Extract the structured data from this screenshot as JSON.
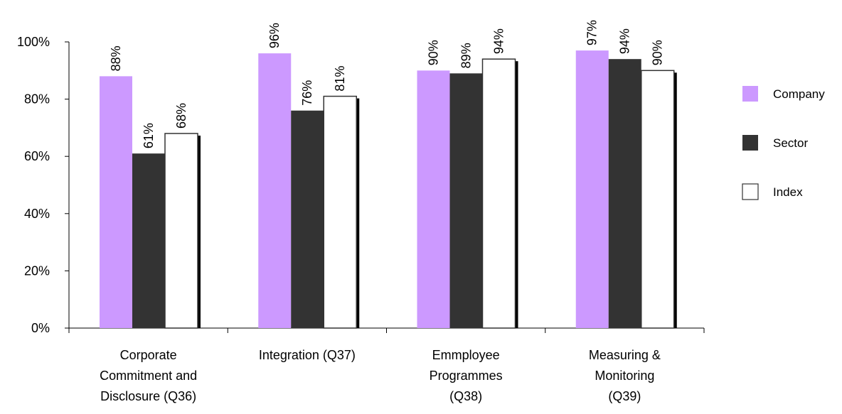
{
  "chart_data": {
    "type": "bar",
    "categories": [
      [
        "Corporate",
        "Commitment and",
        "Disclosure (Q36)"
      ],
      [
        "Integration (Q37)"
      ],
      [
        "Emmployee",
        "Programmes",
        "(Q38)"
      ],
      [
        "Measuring &",
        "Monitoring",
        "(Q39)"
      ]
    ],
    "series": [
      {
        "name": "Company",
        "values": [
          88,
          96,
          90,
          97
        ],
        "labels": [
          "88%",
          "96%",
          "90%",
          "97%"
        ],
        "color": "#cc99ff"
      },
      {
        "name": "Sector",
        "values": [
          61,
          76,
          89,
          94
        ],
        "labels": [
          "61%",
          "76%",
          "89%",
          "94%"
        ],
        "color": "#333333"
      },
      {
        "name": "Index",
        "values": [
          68,
          81,
          94,
          90
        ],
        "labels": [
          "68%",
          "81%",
          "94%",
          "90%"
        ],
        "color": "#ffffff"
      }
    ],
    "yticks": [
      "0%",
      "20%",
      "40%",
      "60%",
      "80%",
      "100%"
    ],
    "ylim": [
      0,
      100
    ],
    "legend_position": "right",
    "grid": false
  }
}
